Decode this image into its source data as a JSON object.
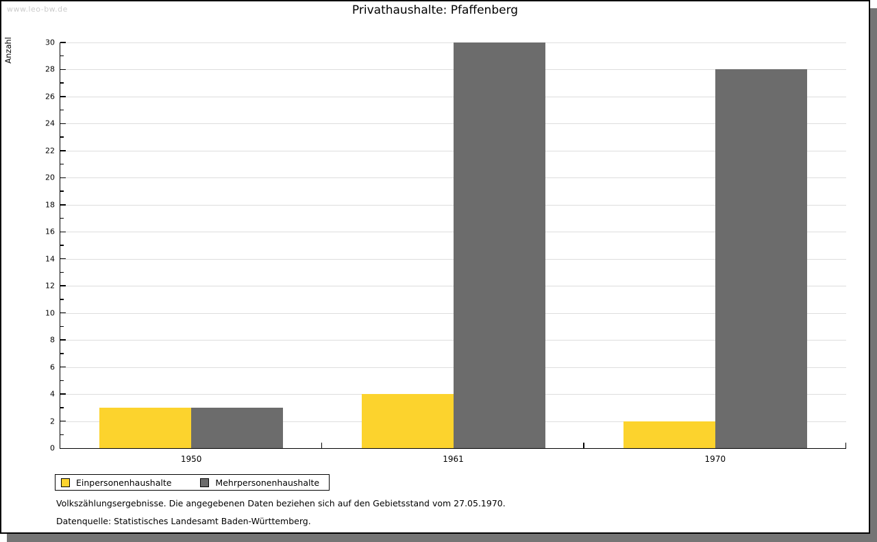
{
  "watermark": "www.leo-bw.de",
  "chart_data": {
    "type": "bar",
    "title": "Privathaushalte: Pfaffenberg",
    "ylabel": "Anzahl",
    "xlabel": "",
    "categories": [
      "1950",
      "1961",
      "1970"
    ],
    "series": [
      {
        "name": "Einpersonenhaushalte",
        "color": "#FCD32D",
        "values": [
          3,
          4,
          2
        ]
      },
      {
        "name": "Mehrpersonenhaushalte",
        "color": "#6C6C6C",
        "values": [
          3,
          30,
          28
        ]
      }
    ],
    "ylim": [
      0,
      30
    ],
    "ytick_step": 2,
    "yminor_step": 1,
    "grid": true,
    "legend_position": "bottom-left"
  },
  "footnotes": [
    "Volkszählungsergebnisse. Die angegebenen Daten beziehen sich auf den Gebietsstand vom 27.05.1970.",
    "Datenquelle: Statistisches Landesamt Baden-Württemberg."
  ],
  "colors": {
    "bar_yellow": "#FCD32D",
    "bar_gray": "#6C6C6C",
    "gridline": "#dddddd",
    "axis": "#000000",
    "watermark": "#cbcbcb",
    "frame_shadow": "#757575",
    "background": "#ffffff"
  }
}
